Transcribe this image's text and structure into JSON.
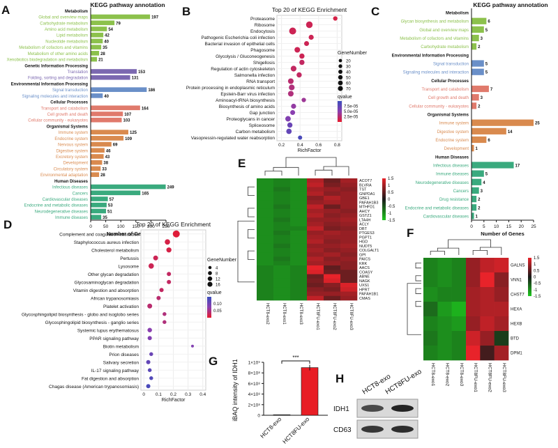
{
  "colors": {
    "Metabolism": "#8cc14c",
    "Genetic Information Processing": "#7b68b0",
    "Environmental Information Processing": "#6a8fc8",
    "Cellular Processes": "#e07a6c",
    "Organismal Systems": "#d98a4e",
    "Human Diseases": "#3aaa7e",
    "bar_red": "#e81e25",
    "bar_black": "#222222"
  },
  "panel_letters": [
    "A",
    "B",
    "C",
    "D",
    "E",
    "F",
    "G",
    "H"
  ],
  "chart_data": [
    {
      "id": "A",
      "type": "bar",
      "orientation": "horizontal",
      "title": "KEGG pathway annotation",
      "xlabel": "Number of Genes",
      "xlim": [
        0,
        250
      ],
      "xticks": [
        0,
        50,
        100,
        150,
        200,
        250
      ],
      "groups": [
        {
          "name": "Metabolism",
          "items": [
            {
              "label": "Global and overview maps",
              "value": 197
            },
            {
              "label": "Carbohydrate metabolism",
              "value": 79
            },
            {
              "label": "Amino acid metabolism",
              "value": 54
            },
            {
              "label": "Lipid metabolism",
              "value": 42
            },
            {
              "label": "Nucleotide metabolism",
              "value": 40
            },
            {
              "label": "Metabolism of cofactors and vitamins",
              "value": 35
            },
            {
              "label": "Metabolism of other amino acids",
              "value": 28
            },
            {
              "label": "Xenobiotics biodegradation and metabolism",
              "value": 21
            }
          ]
        },
        {
          "name": "Genetic Information Processing",
          "items": [
            {
              "label": "Translation",
              "value": 153
            },
            {
              "label": "Folding, sorting and degradation",
              "value": 131
            }
          ]
        },
        {
          "name": "Environmental Information Processing",
          "items": [
            {
              "label": "Signal transduction",
              "value": 186
            },
            {
              "label": "Signaling molecules and interaction",
              "value": 40
            }
          ]
        },
        {
          "name": "Cellular Processes",
          "items": [
            {
              "label": "Transport and catabolism",
              "value": 164
            },
            {
              "label": "Cell growth and death",
              "value": 107
            },
            {
              "label": "Cellular community - eukaryotes",
              "value": 103
            }
          ]
        },
        {
          "name": "Organismal Systems",
          "items": [
            {
              "label": "Immune system",
              "value": 125
            },
            {
              "label": "Endocrine system",
              "value": 109
            },
            {
              "label": "Nervous system",
              "value": 69
            },
            {
              "label": "Digestive system",
              "value": 46
            },
            {
              "label": "Excretory system",
              "value": 43
            },
            {
              "label": "Development",
              "value": 38
            },
            {
              "label": "Circulatory system",
              "value": 33
            },
            {
              "label": "Environmental adaptation",
              "value": 28
            }
          ]
        },
        {
          "name": "Human Diseases",
          "items": [
            {
              "label": "Infectious diseases",
              "value": 249
            },
            {
              "label": "Cancers",
              "value": 165
            },
            {
              "label": "Cardiovascular diseases",
              "value": 57
            },
            {
              "label": "Endocrine and metabolic diseases",
              "value": 53
            },
            {
              "label": "Neurodegenerative diseases",
              "value": 51
            },
            {
              "label": "Immune diseases",
              "value": 35
            }
          ]
        }
      ]
    },
    {
      "id": "B",
      "type": "scatter",
      "title": "Top 20 of KEGG Enrichment",
      "xlabel": "RichFactor",
      "xlim": [
        0.15,
        0.85
      ],
      "xticks": [
        0.2,
        0.4,
        0.6,
        0.8
      ],
      "size_legend_title": "GeneNumber",
      "size_legend": [
        20,
        30,
        40,
        50,
        60,
        70
      ],
      "color_legend_title": "qvalue",
      "color_legend": [
        "7.5e-05",
        "5.0e-05",
        "2.5e-05"
      ],
      "points": [
        {
          "label": "Proteasome",
          "x": 0.78,
          "size": 20,
          "q": 0.9
        },
        {
          "label": "Ribosome",
          "x": 0.5,
          "size": 60,
          "q": 0.85
        },
        {
          "label": "Endocytosis",
          "x": 0.32,
          "size": 70,
          "q": 0.85
        },
        {
          "label": "Pathogenic Escherichia coli infection",
          "x": 0.52,
          "size": 30,
          "q": 0.85
        },
        {
          "label": "Bacterial invasion of epithelial cells",
          "x": 0.47,
          "size": 28,
          "q": 0.85
        },
        {
          "label": "Phagosome",
          "x": 0.37,
          "size": 40,
          "q": 0.85
        },
        {
          "label": "Glycolysis / Gluconeogenesis",
          "x": 0.42,
          "size": 32,
          "q": 0.85
        },
        {
          "label": "Shigellosis",
          "x": 0.42,
          "size": 32,
          "q": 0.8
        },
        {
          "label": "Regulation of actin cytoskeleton",
          "x": 0.33,
          "size": 42,
          "q": 0.8
        },
        {
          "label": "Salmonella infection",
          "x": 0.39,
          "size": 32,
          "q": 0.8
        },
        {
          "label": "RNA transport",
          "x": 0.3,
          "size": 40,
          "q": 0.75
        },
        {
          "label": "Protein processing in endoplasmic reticulum",
          "x": 0.31,
          "size": 42,
          "q": 0.7
        },
        {
          "label": "Epstein-Barr virus infection",
          "x": 0.3,
          "size": 40,
          "q": 0.7
        },
        {
          "label": "Aminoacyl-tRNA biosynthesis",
          "x": 0.44,
          "size": 20,
          "q": 0.6
        },
        {
          "label": "Biosynthesis of amino acids",
          "x": 0.33,
          "size": 30,
          "q": 0.55
        },
        {
          "label": "Gap junction",
          "x": 0.32,
          "size": 28,
          "q": 0.5
        },
        {
          "label": "Proteoglycans in cancer",
          "x": 0.27,
          "size": 38,
          "q": 0.45
        },
        {
          "label": "Spliceosome",
          "x": 0.29,
          "size": 32,
          "q": 0.3
        },
        {
          "label": "Carbon metabolism",
          "x": 0.28,
          "size": 36,
          "q": 0.25
        },
        {
          "label": "Vasopressin-regulated water reabsorption",
          "x": 0.4,
          "size": 18,
          "q": 0.1
        }
      ]
    },
    {
      "id": "C",
      "type": "bar",
      "orientation": "horizontal",
      "title": "KEGG pathway annotation",
      "xlabel": "Number of Genes",
      "xlim": [
        0,
        25
      ],
      "xticks": [
        0,
        5,
        10,
        15,
        20,
        25
      ],
      "groups": [
        {
          "name": "Metabolism",
          "items": [
            {
              "label": "Glycan biosynthesis and metabolism",
              "value": 6
            },
            {
              "label": "Global and overview maps",
              "value": 5
            },
            {
              "label": "Metabolism of cofactors and vitamins",
              "value": 3
            },
            {
              "label": "Carbohydrate metabolism",
              "value": 2
            }
          ]
        },
        {
          "name": "Environmental Information Processing",
          "items": [
            {
              "label": "Signal transduction",
              "value": 5
            },
            {
              "label": "Signaling molecules and interaction",
              "value": 5
            }
          ]
        },
        {
          "name": "Cellular Processes",
          "items": [
            {
              "label": "Transport and catabolism",
              "value": 7
            },
            {
              "label": "Cell growth and death",
              "value": 3
            },
            {
              "label": "Cellular community - eukaryotes",
              "value": 2
            }
          ]
        },
        {
          "name": "Organismal Systems",
          "items": [
            {
              "label": "Immune system",
              "value": 25
            },
            {
              "label": "Digestive system",
              "value": 14
            },
            {
              "label": "Endocrine system",
              "value": 6
            },
            {
              "label": "Development",
              "value": 1
            }
          ]
        },
        {
          "name": "Human Diseases",
          "items": [
            {
              "label": "Infectious diseases",
              "value": 17
            },
            {
              "label": "Immune diseases",
              "value": 5
            },
            {
              "label": "Neurodegenerative diseases",
              "value": 4
            },
            {
              "label": "Cancers",
              "value": 3
            },
            {
              "label": "Drug resistance",
              "value": 2
            },
            {
              "label": "Endocrine and metabolic diseases",
              "value": 2
            },
            {
              "label": "Cardiovascular diseases",
              "value": 1
            }
          ]
        }
      ]
    },
    {
      "id": "D",
      "type": "scatter",
      "title": "Top 20 of KEGG Enrichment",
      "xlabel": "RichFactor",
      "xlim": [
        -0.02,
        0.42
      ],
      "xticks": [
        0.0,
        0.1,
        0.2,
        0.3,
        0.4
      ],
      "size_legend_title": "GeneNumber",
      "size_legend": [
        4,
        8,
        12,
        16
      ],
      "color_legend_title": "qvalue",
      "color_legend": [
        "0.10",
        "0.05"
      ],
      "points": [
        {
          "label": "Complement and coagulation cascades",
          "x": 0.22,
          "size": 16,
          "q": 0.95
        },
        {
          "label": "Staphylococcus aureus infection",
          "x": 0.16,
          "size": 8,
          "q": 0.9
        },
        {
          "label": "Cholesterol metabolism",
          "x": 0.17,
          "size": 7,
          "q": 0.9
        },
        {
          "label": "Pertussis",
          "x": 0.08,
          "size": 6,
          "q": 0.85
        },
        {
          "label": "Lysosome",
          "x": 0.05,
          "size": 8,
          "q": 0.85
        },
        {
          "label": "Other glycan degradation",
          "x": 0.17,
          "size": 4,
          "q": 0.8
        },
        {
          "label": "Glycosaminoglycan degradation",
          "x": 0.17,
          "size": 4,
          "q": 0.8
        },
        {
          "label": "Vitamin digestion and absorption",
          "x": 0.12,
          "size": 4,
          "q": 0.8
        },
        {
          "label": "African trypanosomiasis",
          "x": 0.1,
          "size": 4,
          "q": 0.75
        },
        {
          "label": "Platelet activation",
          "x": 0.04,
          "size": 6,
          "q": 0.75
        },
        {
          "label": "Glycosphingolipid biosynthesis - globo and isoglobo series",
          "x": 0.14,
          "size": 3,
          "q": 0.7
        },
        {
          "label": "Glycosphingolipid biosynthesis - ganglio series",
          "x": 0.14,
          "size": 3,
          "q": 0.7
        },
        {
          "label": "Systemic lupus erythematosus",
          "x": 0.04,
          "size": 5,
          "q": 0.5
        },
        {
          "label": "PPAR signaling pathway",
          "x": 0.04,
          "size": 4,
          "q": 0.45
        },
        {
          "label": "Biotin metabolism",
          "x": 0.33,
          "size": 1,
          "q": 0.45
        },
        {
          "label": "Prion diseases",
          "x": 0.05,
          "size": 3,
          "q": 0.3
        },
        {
          "label": "Salivary secretion",
          "x": 0.03,
          "size": 4,
          "q": 0.25
        },
        {
          "label": "IL-17 signaling pathway",
          "x": 0.04,
          "size": 3,
          "q": 0.2
        },
        {
          "label": "Fat digestion and absorption",
          "x": 0.05,
          "size": 3,
          "q": 0.15
        },
        {
          "label": "Chagas disease (American trypanosomiasis)",
          "x": 0.03,
          "size": 4,
          "q": 0.1
        }
      ]
    },
    {
      "id": "E",
      "type": "heatmap",
      "columns": [
        "HCT8-exo2",
        "HCT8-exo1",
        "HCT8-exo3",
        "HCT8FU-exo1",
        "HCT8FU-exo2",
        "HCT8FU-exo3"
      ],
      "rows": [
        "ACOT7",
        "BLVRA",
        "TST",
        "GNPDA1",
        "GBE1",
        "PAFAH1B3",
        "MTHFD1",
        "AHCY",
        "GSTZ1",
        "LTA4H",
        "ACLY",
        "DBT",
        "PTGES3",
        "PGPT1",
        "HGD",
        "NUDT5",
        "COLGALT1",
        "GPI",
        "PAICS",
        "KRK",
        "AACS",
        "COASY",
        "ABNE",
        "NAGK",
        "UXS1",
        "HPRT",
        "PAFAH1B1",
        "CMAS"
      ],
      "color_scale": {
        "min": -1.5,
        "max": 1.5,
        "ticks": [
          "1.5",
          "1",
          "0.5",
          "0",
          "-0.5",
          "-1",
          "-1.5"
        ]
      },
      "values": [
        [
          -1,
          -0.9,
          -1,
          1.1,
          0.6,
          1
        ],
        [
          -1,
          -0.9,
          -1,
          1.2,
          0.7,
          0.9
        ],
        [
          -1,
          -0.8,
          -1,
          1.0,
          0.9,
          0.8
        ],
        [
          -1,
          -0.9,
          -1,
          1.1,
          0.8,
          0.9
        ],
        [
          -1,
          -0.9,
          -1,
          0.8,
          1.1,
          0.9
        ],
        [
          -1,
          -0.9,
          -1,
          0.9,
          1.0,
          0.9
        ],
        [
          -1,
          -0.8,
          -1,
          1.2,
          0.6,
          0.9
        ],
        [
          -1,
          -0.9,
          -1,
          1.0,
          0.9,
          0.8
        ],
        [
          -1,
          -0.9,
          -1,
          1.1,
          0.8,
          0.9
        ],
        [
          -1,
          -0.8,
          -1,
          0.9,
          0.9,
          1.0
        ],
        [
          -1,
          -0.9,
          -1,
          1.0,
          0.8,
          0.9
        ],
        [
          -1,
          -0.9,
          -0.9,
          1.2,
          0.7,
          0.8
        ],
        [
          -1,
          -0.8,
          -1,
          0.9,
          1.0,
          0.9
        ],
        [
          -1,
          -0.9,
          -1,
          1.0,
          0.9,
          0.9
        ],
        [
          -1,
          -0.9,
          -1,
          1.1,
          0.8,
          0.9
        ],
        [
          -1,
          -0.8,
          -1,
          0.9,
          0.9,
          1.0
        ],
        [
          -1,
          -0.9,
          -1,
          1.0,
          0.8,
          0.9
        ],
        [
          -1,
          -0.9,
          -1,
          0.9,
          1.0,
          0.8
        ],
        [
          -1,
          -0.8,
          -1,
          1.1,
          0.8,
          0.9
        ],
        [
          -1,
          -0.9,
          -1,
          1.0,
          0.9,
          0.8
        ],
        [
          -0.9,
          -1,
          -0.9,
          1.5,
          0.5,
          0.8
        ],
        [
          -0.9,
          -1,
          -0.9,
          1.4,
          0.6,
          0.6
        ],
        [
          -0.9,
          -1,
          -0.9,
          0.6,
          1.5,
          0.6
        ],
        [
          -0.9,
          -1,
          -0.9,
          0.7,
          1.4,
          0.6
        ],
        [
          -0.9,
          -1,
          -0.9,
          0.6,
          0.8,
          1.4
        ],
        [
          -0.9,
          -1,
          -0.9,
          0.8,
          0.7,
          1.3
        ],
        [
          -0.9,
          -1,
          -0.9,
          0.9,
          0.9,
          1.0
        ],
        [
          -0.9,
          -1,
          -0.9,
          1.2,
          0.6,
          0.9
        ]
      ]
    },
    {
      "id": "F",
      "type": "heatmap",
      "columns": [
        "HCT8-exo1",
        "HCT8-exo2",
        "HCT8-exo3",
        "HCT8FU-exo1",
        "HCT8FU-exo2",
        "HCT8FU-exo3"
      ],
      "rows": [
        "GALNS",
        "VNN1",
        "CHST7",
        "HEXA",
        "HEXB",
        "BTD",
        "DPM1"
      ],
      "color_scale": {
        "min": -1.5,
        "max": 1.5,
        "ticks": [
          "1.5",
          "1",
          "0.5",
          "0",
          "-0.5",
          "-1",
          "-1.5"
        ]
      },
      "values": [
        [
          -0.9,
          -1,
          -0.9,
          0.9,
          1.2,
          1.3
        ],
        [
          -0.9,
          -1,
          -0.9,
          0.9,
          1.5,
          0.8
        ],
        [
          -1,
          -0.9,
          -0.9,
          1.0,
          1.1,
          0.9
        ],
        [
          -0.7,
          -1.1,
          -1.3,
          1.0,
          1.1,
          1.1
        ],
        [
          -0.9,
          -1.0,
          -1.1,
          0.9,
          1.2,
          1.0
        ],
        [
          -0.8,
          -1.0,
          -0.9,
          1.3,
          0.9,
          -0.3
        ],
        [
          -0.9,
          -1.0,
          -0.9,
          1.5,
          0.3,
          1.0
        ]
      ]
    },
    {
      "id": "G",
      "type": "bar",
      "ylabel": "iBAQ intensity of IDH1",
      "yticks": [
        "0",
        "2×10⁸",
        "4×10⁸",
        "6×10⁸",
        "8×10⁸",
        "1×10⁹"
      ],
      "ylim": [
        0,
        1000000000
      ],
      "categories": [
        "HCT8-exo",
        "HCT8FU-exo"
      ],
      "values": [
        10000000,
        900000000
      ],
      "significance": "***"
    },
    {
      "id": "H",
      "type": "blot",
      "lanes": [
        "HCT8-exo",
        "HCT8FU-exo"
      ],
      "rows": [
        {
          "label": "IDH1",
          "intensities": [
            0.75,
            0.95
          ]
        },
        {
          "label": "CD63",
          "intensities": [
            0.85,
            0.9
          ]
        }
      ]
    }
  ]
}
